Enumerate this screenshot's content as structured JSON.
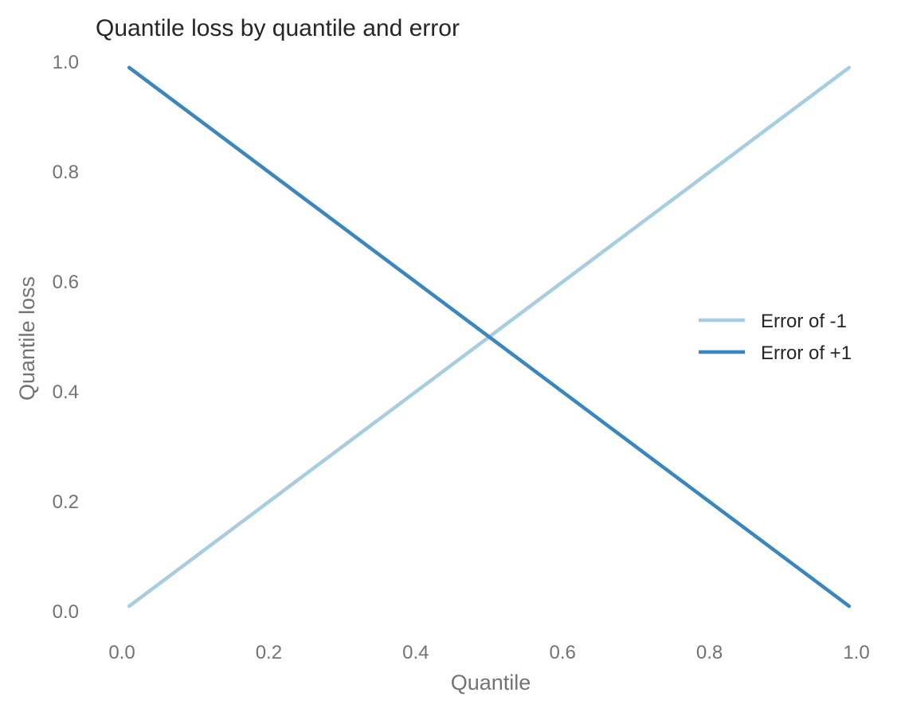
{
  "chart_data": {
    "type": "line",
    "title": "Quantile loss by quantile and error",
    "xlabel": "Quantile",
    "ylabel": "Quantile loss",
    "xlim": [
      0.0,
      1.0
    ],
    "ylim": [
      0.0,
      1.0
    ],
    "xticks": [
      "0.0",
      "0.2",
      "0.4",
      "0.6",
      "0.8",
      "1.0"
    ],
    "yticks": [
      "0.0",
      "0.2",
      "0.4",
      "0.6",
      "0.8",
      "1.0"
    ],
    "grid": false,
    "legend_position": "right",
    "series": [
      {
        "name": "Error of -1",
        "color": "#a6cde2",
        "x": [
          0.01,
          0.99
        ],
        "y": [
          0.01,
          0.99
        ]
      },
      {
        "name": "Error of +1",
        "color": "#3a86bf",
        "x": [
          0.01,
          0.99
        ],
        "y": [
          0.99,
          0.01
        ]
      }
    ]
  }
}
